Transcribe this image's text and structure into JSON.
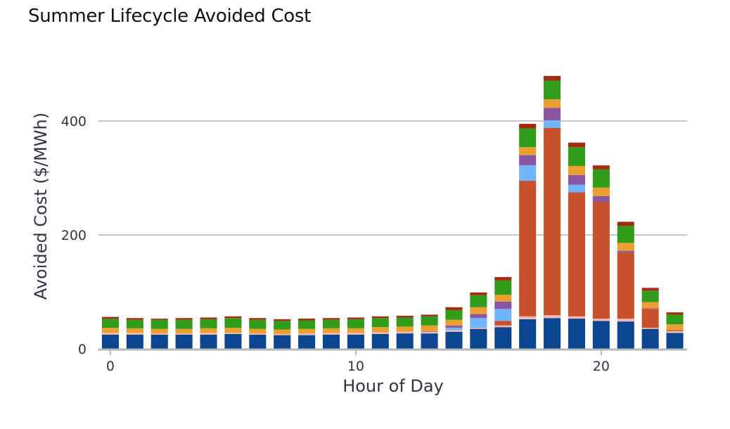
{
  "chart_data": {
    "type": "bar",
    "stacked": true,
    "title": "Summer Lifecycle Avoided Cost",
    "xlabel": "Hour of Day",
    "ylabel": "Avoided Cost ($/MWh)",
    "ylim": [
      0,
      500
    ],
    "xlim": [
      -0.5,
      23.5
    ],
    "yticks": [
      0,
      200,
      400
    ],
    "xticks": [
      0,
      10,
      20
    ],
    "grid": "horizontal",
    "legend": "none",
    "categories": [
      0,
      1,
      2,
      3,
      4,
      5,
      6,
      7,
      8,
      9,
      10,
      11,
      12,
      13,
      14,
      15,
      16,
      17,
      18,
      19,
      20,
      21,
      22,
      23
    ],
    "series": [
      {
        "color": "#0d4690",
        "values": [
          25,
          25,
          25,
          25,
          25,
          26,
          25,
          24,
          24,
          25,
          25,
          26,
          27,
          27,
          30,
          35,
          38,
          52,
          54,
          53,
          49,
          48,
          35,
          28
        ]
      },
      {
        "color": "#f4b8b0",
        "values": [
          3,
          3,
          2,
          2,
          3,
          2,
          2,
          2,
          3,
          3,
          3,
          3,
          3,
          3,
          3,
          2,
          3,
          5,
          5,
          4,
          4,
          5,
          2,
          3
        ]
      },
      {
        "color": "#c8512d",
        "values": [
          0,
          0,
          0,
          0,
          0,
          0,
          0,
          0,
          0,
          0,
          0,
          0,
          0,
          0,
          0,
          0,
          8,
          238,
          329,
          218,
          205,
          116,
          33,
          2
        ]
      },
      {
        "color": "#6fb6fd",
        "values": [
          0,
          0,
          0,
          0,
          0,
          0,
          0,
          0,
          0,
          0,
          0,
          0,
          0,
          0,
          4,
          17,
          21,
          27,
          13,
          13,
          0,
          0,
          0,
          0
        ]
      },
      {
        "color": "#8a56a3",
        "values": [
          0,
          0,
          0,
          0,
          0,
          0,
          0,
          0,
          0,
          0,
          0,
          0,
          0,
          1,
          4,
          7,
          13,
          18,
          22,
          17,
          10,
          3,
          1,
          0
        ]
      },
      {
        "color": "#eb9f2e",
        "values": [
          9,
          8,
          8,
          8,
          8,
          9,
          8,
          8,
          8,
          8,
          8,
          9,
          9,
          10,
          10,
          12,
          12,
          14,
          15,
          16,
          15,
          14,
          11,
          10
        ]
      },
      {
        "color": "#319b1a",
        "values": [
          16,
          15,
          16,
          16,
          16,
          17,
          16,
          15,
          15,
          15,
          16,
          16,
          16,
          16,
          17,
          21,
          25,
          33,
          33,
          33,
          32,
          30,
          20,
          17
        ]
      },
      {
        "color": "#a52a14",
        "values": [
          3,
          3,
          2,
          3,
          3,
          3,
          3,
          3,
          3,
          3,
          3,
          3,
          3,
          3,
          5,
          5,
          6,
          8,
          8,
          8,
          7,
          7,
          5,
          4
        ]
      }
    ]
  }
}
